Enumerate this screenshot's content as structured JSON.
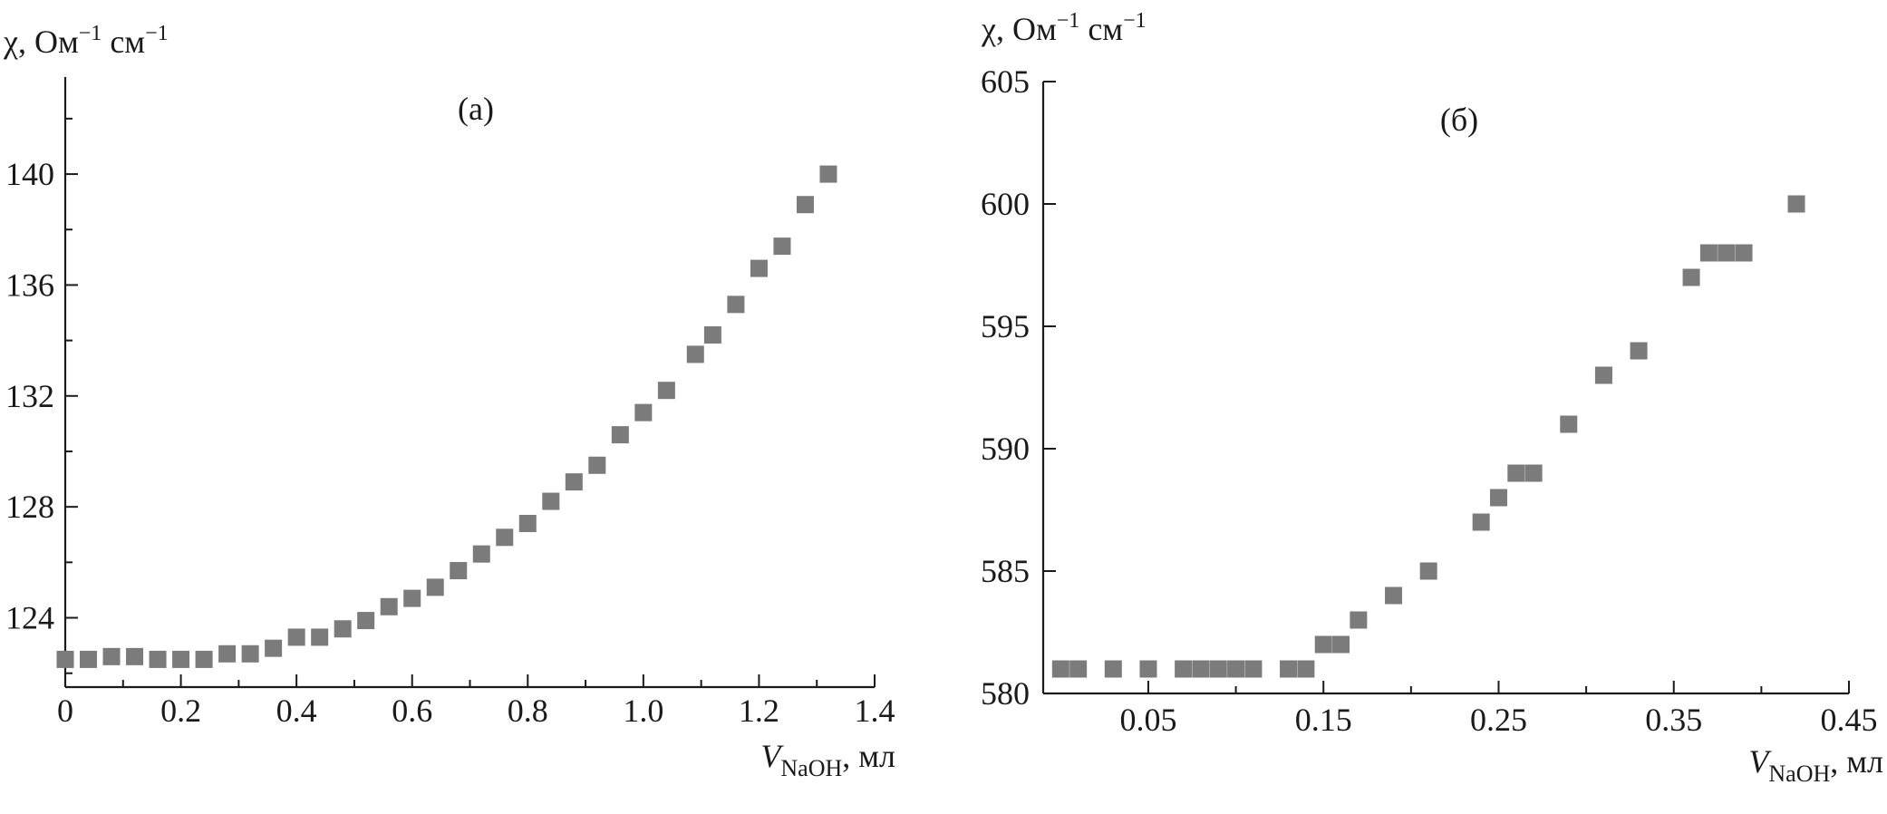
{
  "chart_data": [
    {
      "type": "scatter",
      "panel_label": "(а)",
      "ylabel_main": "χ, Ом",
      "ylabel_sup1": "−1",
      "ylabel_mid": " см",
      "ylabel_sup2": "−1",
      "xlabel_var": "V",
      "xlabel_sub": "NaOH",
      "xlabel_unit": ", мл",
      "xlim": [
        0,
        1.4
      ],
      "ylim": [
        121.5,
        143.5
      ],
      "x_ticks": [
        "0",
        "0.2",
        "0.4",
        "0.6",
        "0.8",
        "1.0",
        "1.2",
        "1.4"
      ],
      "y_ticks": [
        "124",
        "128",
        "132",
        "136",
        "140"
      ],
      "grid": false,
      "marker_color": "#7b7b7b",
      "x": [
        0,
        0.04,
        0.08,
        0.12,
        0.16,
        0.2,
        0.24,
        0.28,
        0.32,
        0.36,
        0.4,
        0.44,
        0.48,
        0.52,
        0.56,
        0.6,
        0.64,
        0.68,
        0.72,
        0.76,
        0.8,
        0.84,
        0.88,
        0.92,
        0.96,
        1.0,
        1.04,
        1.09,
        1.12,
        1.16,
        1.2,
        1.24,
        1.28,
        1.32
      ],
      "y": [
        122.5,
        122.5,
        122.6,
        122.6,
        122.5,
        122.5,
        122.5,
        122.7,
        122.7,
        122.9,
        123.3,
        123.3,
        123.6,
        123.9,
        124.4,
        124.7,
        125.1,
        125.7,
        126.3,
        126.9,
        127.4,
        128.2,
        128.9,
        129.5,
        130.6,
        131.4,
        132.2,
        133.5,
        134.2,
        135.3,
        136.6,
        137.4,
        138.9,
        140.0
      ]
    },
    {
      "type": "scatter",
      "panel_label": "(б)",
      "ylabel_main": "χ, Ом",
      "ylabel_sup1": "−1",
      "ylabel_mid": " см",
      "ylabel_sup2": "−1",
      "xlabel_var": "V",
      "xlabel_sub": "NaOH",
      "xlabel_unit": ", мл",
      "xlim": [
        -0.01,
        0.45
      ],
      "ylim": [
        580,
        605
      ],
      "x_ticks": [
        "0.05",
        "0.15",
        "0.25",
        "0.35",
        "0.45"
      ],
      "y_ticks": [
        "580",
        "585",
        "590",
        "595",
        "600",
        "605"
      ],
      "grid": false,
      "marker_color": "#7b7b7b",
      "x": [
        0.0,
        0.01,
        0.03,
        0.05,
        0.07,
        0.08,
        0.09,
        0.1,
        0.11,
        0.13,
        0.14,
        0.15,
        0.16,
        0.17,
        0.19,
        0.21,
        0.24,
        0.25,
        0.26,
        0.27,
        0.29,
        0.31,
        0.33,
        0.36,
        0.37,
        0.38,
        0.39,
        0.42
      ],
      "y": [
        581,
        581,
        581,
        581,
        581,
        581,
        581,
        581,
        581,
        581,
        581,
        582,
        582,
        583,
        584,
        585,
        587,
        588,
        589,
        589,
        591,
        593,
        594,
        597,
        598,
        598,
        598,
        600
      ]
    }
  ]
}
